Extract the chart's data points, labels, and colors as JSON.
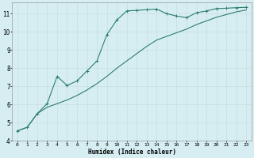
{
  "xlabel": "Humidex (Indice chaleur)",
  "background_color": "#d6eef2",
  "line_color": "#2e7d70",
  "grid_color": "#c8dde0",
  "xlim": [
    -0.5,
    23.5
  ],
  "ylim": [
    4,
    11.6
  ],
  "x_ticks": [
    0,
    1,
    2,
    3,
    4,
    5,
    6,
    7,
    8,
    9,
    10,
    11,
    12,
    13,
    14,
    15,
    16,
    17,
    18,
    19,
    20,
    21,
    22,
    23
  ],
  "y_ticks": [
    4,
    5,
    6,
    7,
    8,
    9,
    10,
    11
  ],
  "line1_x": [
    0,
    1,
    2,
    3,
    4,
    5,
    6,
    7,
    8,
    9,
    10,
    11,
    12,
    13,
    14,
    15,
    16,
    17,
    18,
    19,
    20,
    21,
    22,
    23
  ],
  "line1_y": [
    4.55,
    4.75,
    5.5,
    6.05,
    7.55,
    7.05,
    7.3,
    7.85,
    8.4,
    9.85,
    10.65,
    11.15,
    11.18,
    11.22,
    11.25,
    11.0,
    10.87,
    10.78,
    11.05,
    11.15,
    11.28,
    11.3,
    11.33,
    11.35
  ],
  "line2_x": [
    0,
    1,
    2,
    3,
    4,
    5,
    6,
    7,
    8,
    9,
    10,
    11,
    12,
    13,
    14,
    15,
    16,
    17,
    18,
    19,
    20,
    21,
    22,
    23
  ],
  "line2_y": [
    4.55,
    4.75,
    5.5,
    5.85,
    6.05,
    6.25,
    6.5,
    6.8,
    7.15,
    7.55,
    8.0,
    8.4,
    8.8,
    9.2,
    9.55,
    9.75,
    9.95,
    10.15,
    10.4,
    10.6,
    10.8,
    10.95,
    11.1,
    11.2
  ]
}
